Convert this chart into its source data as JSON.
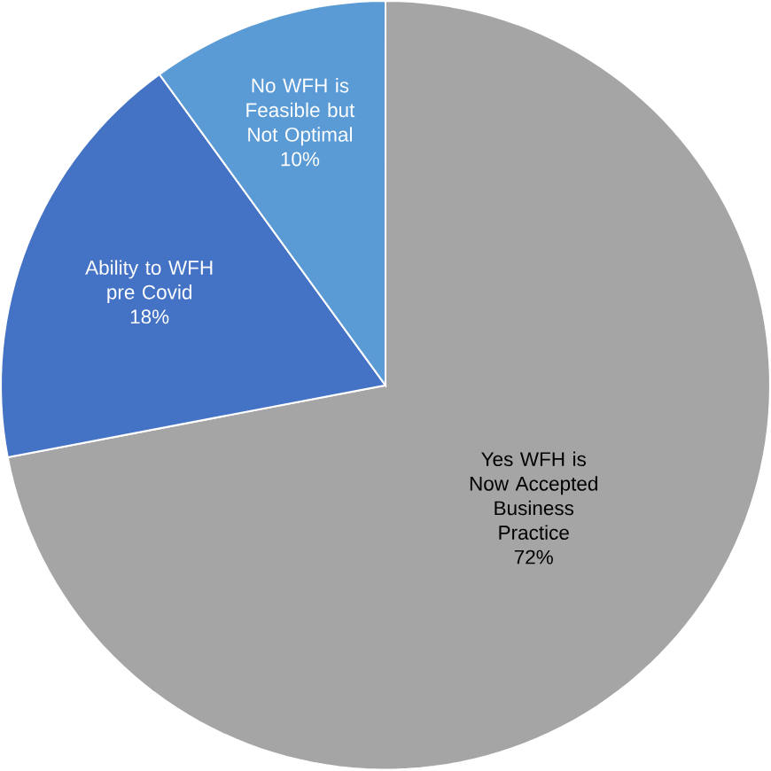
{
  "chart_data": {
    "type": "pie",
    "categories": [
      "Yes WFH is Now Accepted Business Practice",
      "Ability to WFH pre Covid",
      "No WFH is Feasible but Not Optimal"
    ],
    "values": [
      72,
      18,
      10
    ],
    "value_labels": [
      "72%",
      "18%",
      "10%"
    ],
    "colors": [
      "#a5a5a5",
      "#4472c4",
      "#5b9bd5"
    ]
  }
}
